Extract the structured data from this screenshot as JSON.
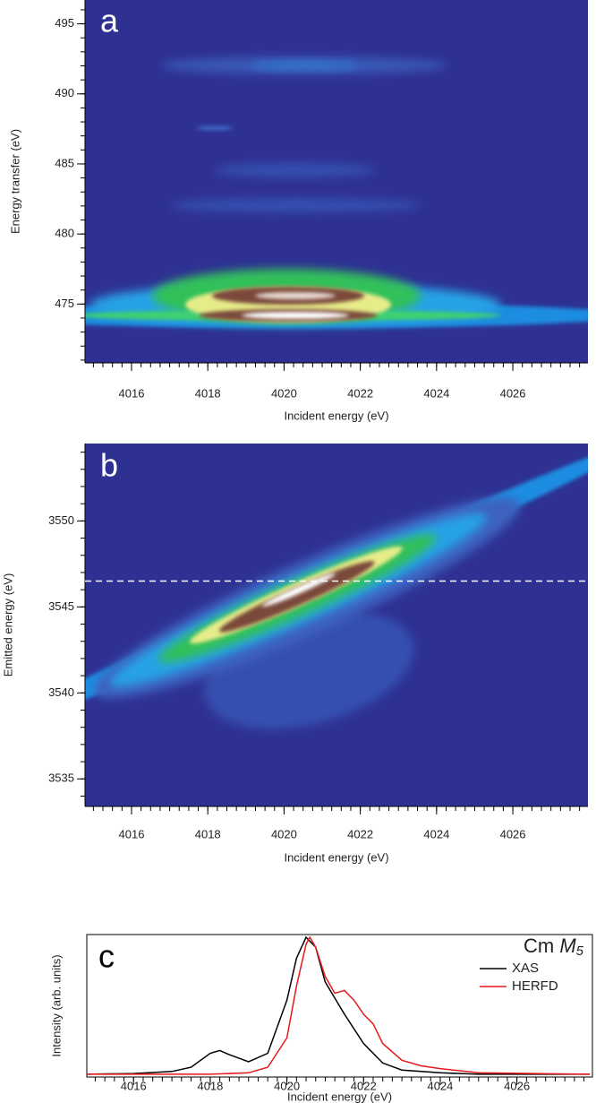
{
  "chart_data": [
    {
      "type": "contour",
      "panel_label": "a",
      "xlabel": "Incident energy (eV)",
      "ylabel": "Energy transfer (eV)",
      "xlim": [
        4014.78,
        4027.97
      ],
      "xticks": [
        4016,
        4018,
        4020,
        4022,
        4024,
        4026
      ],
      "ylim": [
        470.8,
        496.7
      ],
      "yticks": [
        475,
        480,
        485,
        490,
        495
      ]
    },
    {
      "type": "contour",
      "panel_label": "b",
      "xlabel": "Incident energy (eV)",
      "ylabel": "Emitted energy (eV)",
      "xlim": [
        4014.78,
        4027.97
      ],
      "xticks": [
        4016,
        4018,
        4020,
        4022,
        4024,
        4026
      ],
      "ylim": [
        3533.4,
        3554.5
      ],
      "yticks": [
        3535,
        3540,
        3545,
        3550
      ],
      "hline": 3546.5
    },
    {
      "type": "line",
      "panel_label": "c",
      "xlabel": "Incident energy (eV)",
      "ylabel": "Intensity (arb. units)",
      "legend_title": "Cm",
      "legend_title_italic": "M",
      "legend_title_sub": "5",
      "legend": "upper right",
      "xlim": [
        4014.78,
        4027.97
      ],
      "xticks": [
        4016,
        4018,
        4020,
        4022,
        4024,
        4026
      ],
      "ylim": [
        0,
        1.02
      ],
      "series": [
        {
          "name": "XAS",
          "color": "#000000",
          "x": [
            4014.8,
            4016,
            4017,
            4017.5,
            4018,
            4018.25,
            4018.5,
            4019,
            4019.5,
            4020,
            4020.25,
            4020.5,
            4020.75,
            4021,
            4021.5,
            4022,
            4022.5,
            4023,
            4024,
            4025,
            4027.9
          ],
          "values": [
            0.02,
            0.025,
            0.04,
            0.07,
            0.17,
            0.19,
            0.16,
            0.11,
            0.17,
            0.55,
            0.85,
            1.0,
            0.93,
            0.68,
            0.45,
            0.24,
            0.1,
            0.05,
            0.03,
            0.02,
            0.02
          ]
        },
        {
          "name": "HERFD",
          "color": "#e8191c",
          "x": [
            4014.8,
            4018,
            4019,
            4019.5,
            4020,
            4020.25,
            4020.5,
            4020.6,
            4020.75,
            4021,
            4021.25,
            4021.5,
            4021.75,
            4022,
            4022.25,
            4022.5,
            4023,
            4023.5,
            4024,
            4025,
            4027.9
          ],
          "values": [
            0.02,
            0.02,
            0.03,
            0.07,
            0.28,
            0.65,
            0.95,
            1.0,
            0.93,
            0.72,
            0.6,
            0.62,
            0.55,
            0.45,
            0.38,
            0.24,
            0.12,
            0.08,
            0.06,
            0.03,
            0.02
          ]
        }
      ]
    }
  ]
}
